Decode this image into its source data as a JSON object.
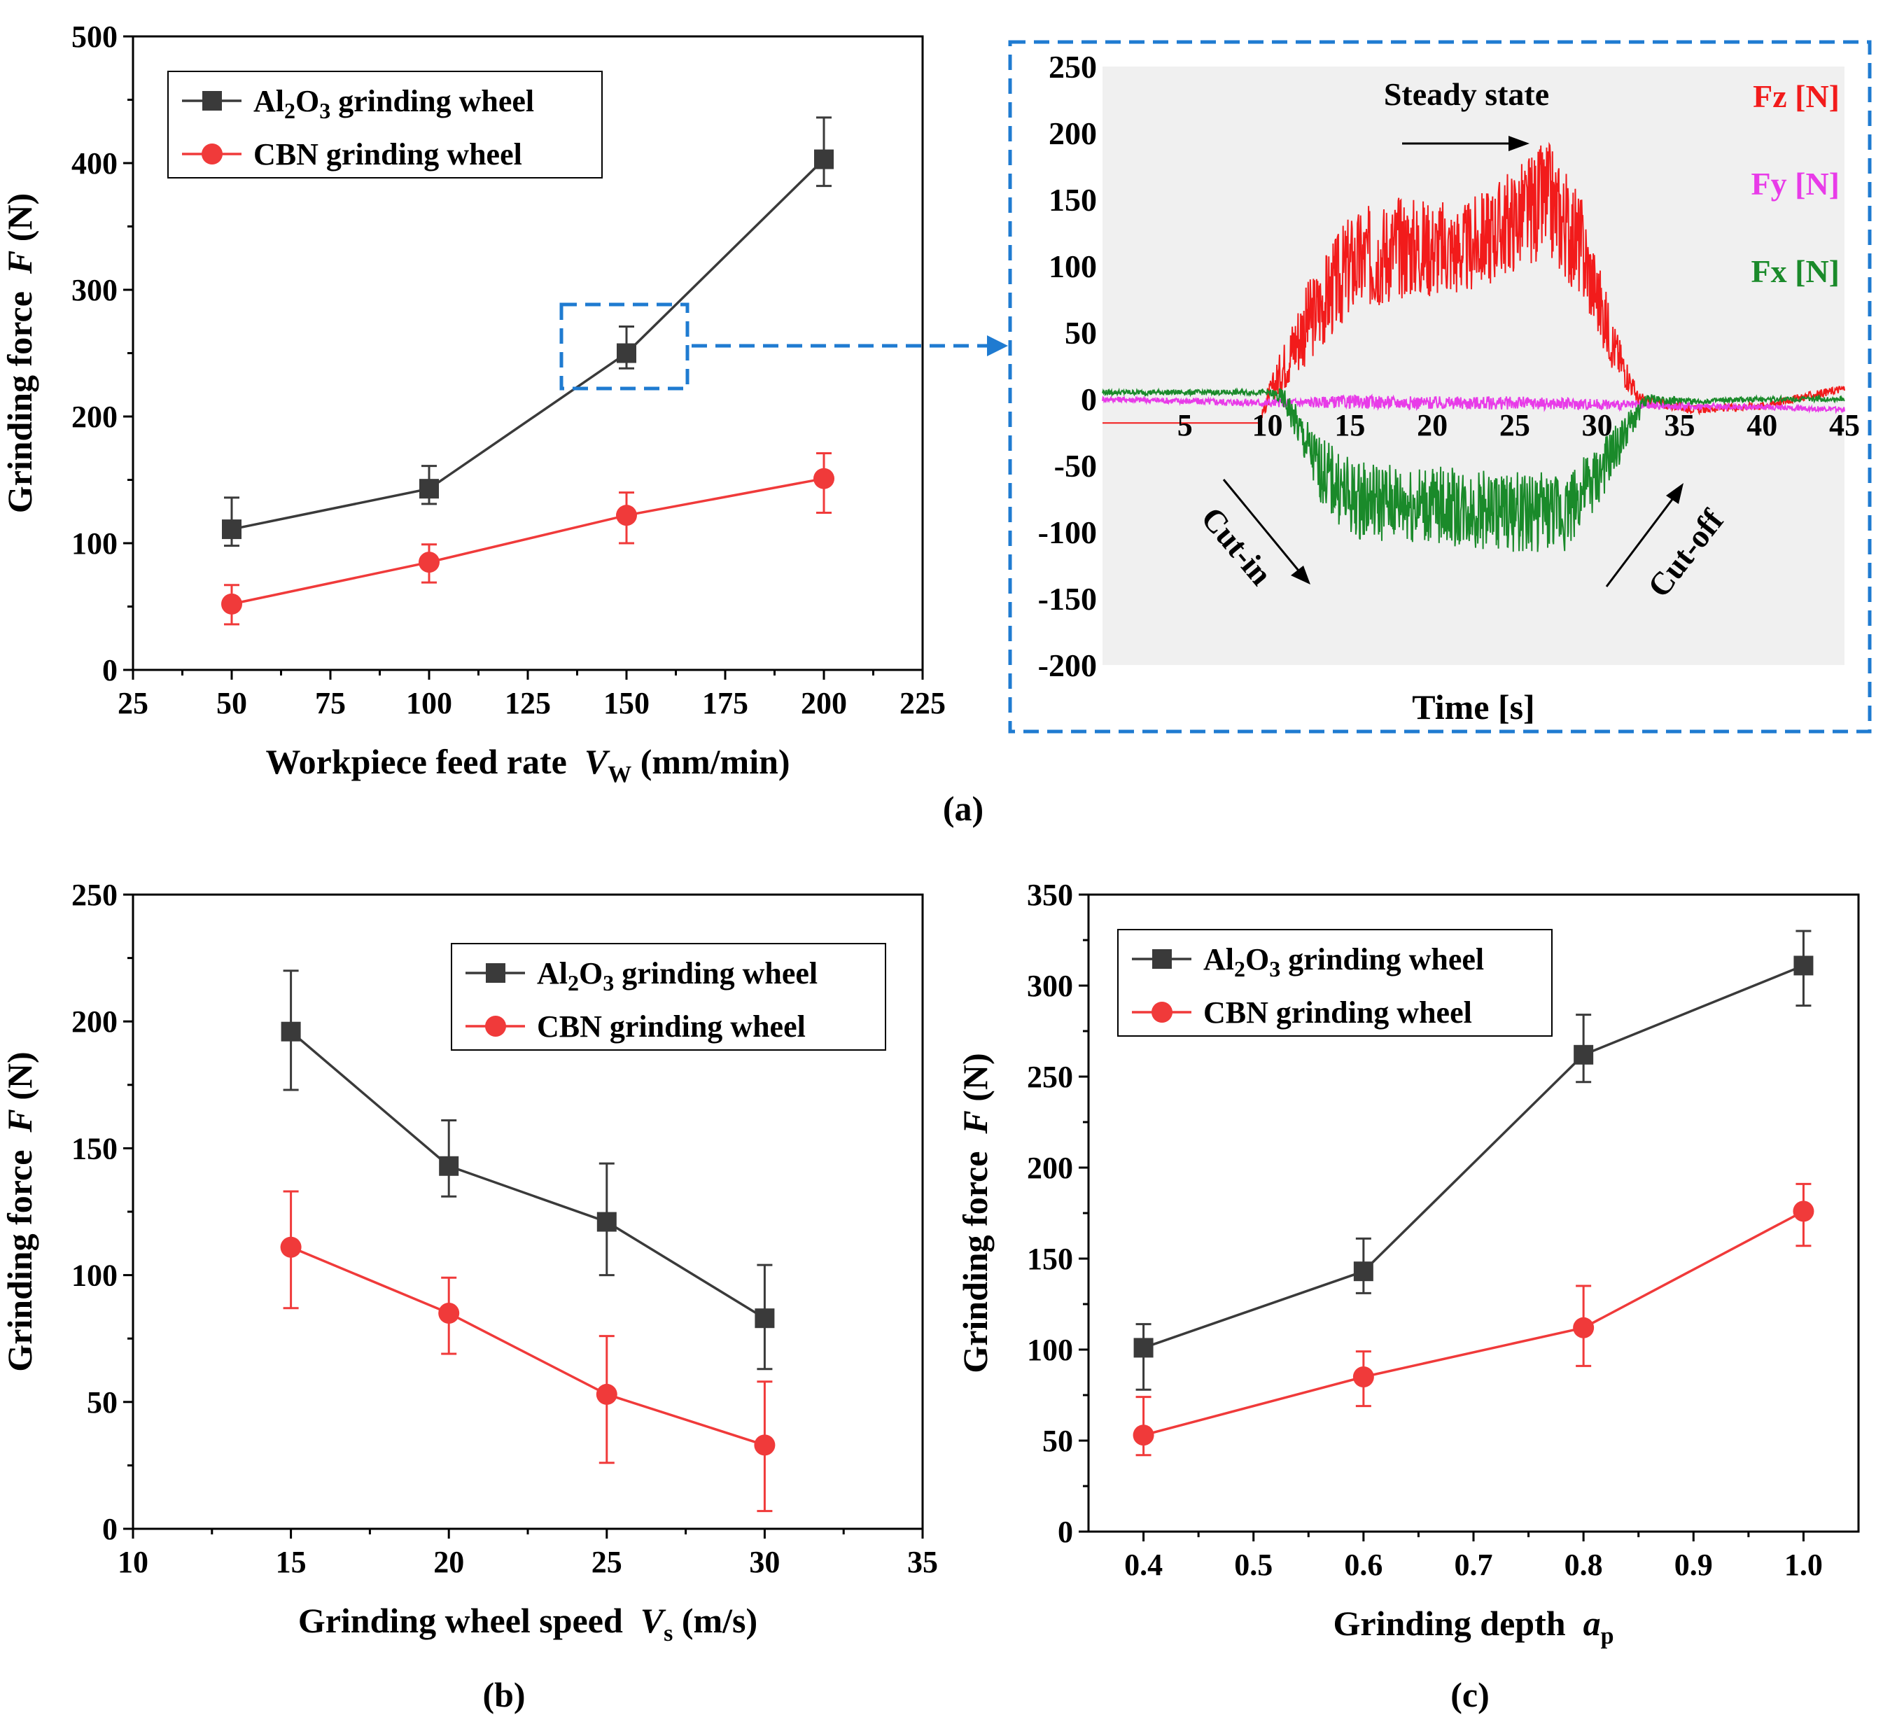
{
  "colors": {
    "al2o3": "#3a3a3a",
    "cbn": "#f03a3a",
    "fz": "#f21b1b",
    "fy": "#e83be8",
    "fx": "#1a8a2a",
    "box": "#1f7bd1"
  },
  "chart_data": [
    {
      "id": "a",
      "panel_label": "(a)",
      "type": "line",
      "xlabel": "Workpiece feed rate",
      "xvar": "V",
      "xvar_sub": "W",
      "xunit": "(mm/min)",
      "ylabel": "Grinding force",
      "yvar": "F",
      "yunit": "(N)",
      "xlim": [
        25,
        225
      ],
      "ylim": [
        0,
        500
      ],
      "xticks": [
        "25",
        "50",
        "75",
        "100",
        "125",
        "150",
        "175",
        "200",
        "225"
      ],
      "yticks": [
        "0",
        "100",
        "200",
        "300",
        "400",
        "500"
      ],
      "x": [
        50,
        100,
        150,
        200
      ],
      "legend_position": "top-left",
      "series": [
        {
          "name": "Al2O3 grinding wheel",
          "name_parts": [
            "Al",
            "2",
            "O",
            "3",
            " grinding wheel"
          ],
          "marker": "square",
          "values": [
            111,
            143,
            250,
            403
          ],
          "err_low": [
            98,
            131,
            238,
            382
          ],
          "err_high": [
            136,
            161,
            271,
            436
          ]
        },
        {
          "name": "CBN grinding wheel",
          "marker": "circle",
          "values": [
            52,
            85,
            122,
            151
          ],
          "err_low": [
            36,
            69,
            100,
            124
          ],
          "err_high": [
            67,
            99,
            140,
            171
          ]
        }
      ]
    },
    {
      "id": "inset",
      "type": "line",
      "title": "Steady state",
      "xlabel": "Time [s]",
      "xlim": [
        0,
        45
      ],
      "ylim": [
        -200,
        250
      ],
      "xticks": [
        "5",
        "10",
        "15",
        "20",
        "25",
        "30",
        "35",
        "40",
        "45"
      ],
      "yticks": [
        "250",
        "200",
        "150",
        "100",
        "50",
        "0",
        "-50",
        "-100",
        "-150",
        "-200"
      ],
      "legend": [
        "Fz [N]",
        "Fy [N]",
        "Fx [N]"
      ],
      "annotations": [
        "Cut-in",
        "Cut-off"
      ],
      "series": [
        {
          "name": "Fz [N]",
          "x": [
            0,
            9.5,
            10,
            12,
            15,
            18,
            22,
            25,
            27,
            29,
            31,
            32.5,
            36,
            40,
            45
          ],
          "values": [
            -18,
            -18,
            0,
            50,
            100,
            115,
            112,
            135,
            150,
            115,
            40,
            0,
            -8,
            -5,
            8
          ],
          "noise": [
            0,
            0,
            8,
            30,
            40,
            40,
            35,
            40,
            45,
            40,
            20,
            5,
            3,
            3,
            3
          ]
        },
        {
          "name": "Fy [N]",
          "x": [
            0,
            10,
            15,
            20,
            25,
            30,
            33,
            40,
            45
          ],
          "values": [
            0,
            -3,
            -2,
            -3,
            -3,
            -4,
            -5,
            -6,
            -8
          ],
          "noise": [
            2,
            3,
            5,
            5,
            5,
            4,
            3,
            2,
            2
          ]
        },
        {
          "name": "Fx [N]",
          "x": [
            0,
            10,
            11,
            13,
            15,
            20,
            25,
            28,
            30,
            32,
            33,
            36,
            40,
            45
          ],
          "values": [
            5,
            5,
            0,
            -50,
            -75,
            -80,
            -85,
            -85,
            -60,
            -20,
            0,
            -2,
            0,
            0
          ],
          "noise": [
            2,
            2,
            8,
            25,
            30,
            30,
            30,
            30,
            25,
            12,
            4,
            2,
            2,
            2
          ]
        }
      ]
    },
    {
      "id": "b",
      "panel_label": "(b)",
      "type": "line",
      "xlabel": "Grinding wheel speed",
      "xvar": "V",
      "xvar_sub": "s",
      "xunit": "(m/s)",
      "ylabel": "Grinding force",
      "yvar": "F",
      "yunit": "(N)",
      "xlim": [
        10,
        35
      ],
      "ylim": [
        0,
        250
      ],
      "xticks": [
        "10",
        "15",
        "20",
        "25",
        "30",
        "35"
      ],
      "yticks": [
        "0",
        "50",
        "100",
        "150",
        "200",
        "250"
      ],
      "x": [
        15,
        20,
        25,
        30
      ],
      "legend_position": "top-right",
      "series": [
        {
          "name": "Al2O3 grinding wheel",
          "name_parts": [
            "Al",
            "2",
            "O",
            "3",
            " grinding wheel"
          ],
          "marker": "square",
          "values": [
            196,
            143,
            121,
            83
          ],
          "err_low": [
            173,
            131,
            100,
            63
          ],
          "err_high": [
            220,
            161,
            144,
            104
          ]
        },
        {
          "name": "CBN grinding wheel",
          "marker": "circle",
          "values": [
            111,
            85,
            53,
            33
          ],
          "err_low": [
            87,
            69,
            26,
            7
          ],
          "err_high": [
            133,
            99,
            76,
            58
          ]
        }
      ]
    },
    {
      "id": "c",
      "panel_label": "(c)",
      "type": "line",
      "xlabel": "Grinding depth",
      "xvar": "a",
      "xvar_sub": "p",
      "xunit": "",
      "ylabel": "Grinding force",
      "yvar": "F",
      "yunit": "(N)",
      "xlim": [
        0.35,
        1.05
      ],
      "ylim": [
        0,
        350
      ],
      "xticks": [
        "0.4",
        "0.5",
        "0.6",
        "0.7",
        "0.8",
        "0.9",
        "1.0"
      ],
      "yticks": [
        "0",
        "50",
        "100",
        "150",
        "200",
        "250",
        "300",
        "350"
      ],
      "x": [
        0.4,
        0.6,
        0.8,
        1.0
      ],
      "legend_position": "top-left",
      "series": [
        {
          "name": "Al2O3 grinding wheel",
          "name_parts": [
            "Al",
            "2",
            "O",
            "3",
            " grinding wheel"
          ],
          "marker": "square",
          "values": [
            101,
            143,
            262,
            311
          ],
          "err_low": [
            78,
            131,
            247,
            289
          ],
          "err_high": [
            114,
            161,
            284,
            330
          ]
        },
        {
          "name": "CBN grinding wheel",
          "marker": "circle",
          "values": [
            53,
            85,
            112,
            176
          ],
          "err_low": [
            42,
            69,
            91,
            157
          ],
          "err_high": [
            74,
            99,
            135,
            191
          ]
        }
      ]
    }
  ]
}
